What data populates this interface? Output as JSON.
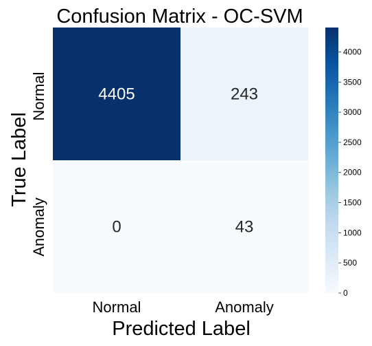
{
  "chart_data": {
    "type": "heatmap",
    "title": "Confusion Matrix - OC-SVM",
    "xlabel": "Predicted Label",
    "ylabel": "True Label",
    "x_categories": [
      "Normal",
      "Anomaly"
    ],
    "y_categories": [
      "Normal",
      "Anomaly"
    ],
    "values": [
      [
        4405,
        243
      ],
      [
        0,
        43
      ]
    ],
    "colormap": "Blues",
    "color_range": [
      0,
      4405
    ],
    "colorbar_ticks": [
      0,
      500,
      1000,
      1500,
      2000,
      2500,
      3000,
      3500,
      4000
    ],
    "colors": {
      "low": "#f7fbff",
      "high": "#08306b",
      "annotation_dark_bg": "#ffffff",
      "annotation_light_bg": "#262626"
    }
  }
}
